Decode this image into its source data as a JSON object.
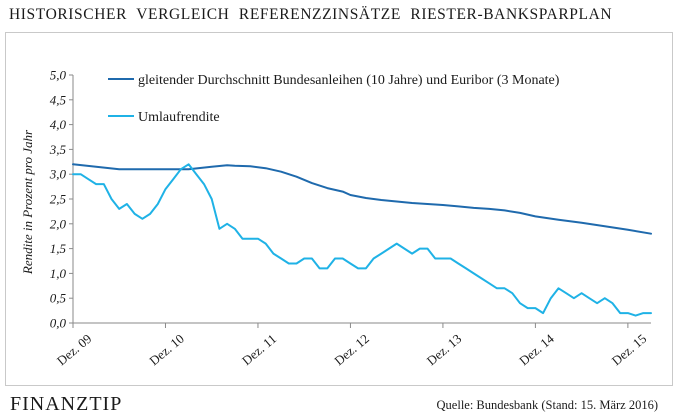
{
  "header": {
    "title": "HISTORISCHER VERGLEICH REFERENZZINSÄTZE RIESTER-BANKSPARPLAN"
  },
  "footer": {
    "logo_part1": "FINANZ",
    "logo_part2": "TIP",
    "source": "Quelle: Bundesbank (Stand: 15. März 2016)"
  },
  "chart_data": {
    "type": "line",
    "title": "",
    "xlabel": "",
    "ylabel": "Rendite in Prozent pro Jahr",
    "ylim": [
      0,
      5
    ],
    "yticks": [
      0,
      0.5,
      1,
      1.5,
      2,
      2.5,
      3,
      3.5,
      4,
      4.5,
      5
    ],
    "ytick_labels": [
      "0,0",
      "0,5",
      "1,0",
      "1,5",
      "2,0",
      "2,5",
      "3,0",
      "3,5",
      "4,0",
      "4,5",
      "5,0"
    ],
    "xlim": [
      0,
      75
    ],
    "xticks": [
      0,
      12,
      24,
      36,
      48,
      60,
      72
    ],
    "xtick_labels": [
      "Dez. 09",
      "Dez. 10",
      "Dez. 11",
      "Dez. 12",
      "Dez. 13",
      "Dez. 14",
      "Dez. 15"
    ],
    "grid": false,
    "legend": "top-left",
    "series": [
      {
        "name": "gleitender Durchschnitt Bundesanleihen (10 Jahre) und Euribor (3 Monate)",
        "color": "#1f6aad",
        "x": [
          0,
          3,
          6,
          9,
          12,
          15,
          18,
          20,
          21,
          23,
          25,
          27,
          29,
          31,
          33,
          35,
          36,
          38,
          40,
          42,
          44,
          46,
          48,
          50,
          52,
          54,
          56,
          58,
          60,
          63,
          66,
          69,
          72,
          75
        ],
        "y": [
          3.2,
          3.15,
          3.1,
          3.1,
          3.1,
          3.1,
          3.15,
          3.18,
          3.17,
          3.16,
          3.12,
          3.05,
          2.95,
          2.82,
          2.72,
          2.65,
          2.58,
          2.52,
          2.48,
          2.45,
          2.42,
          2.4,
          2.38,
          2.35,
          2.32,
          2.3,
          2.27,
          2.22,
          2.15,
          2.08,
          2.02,
          1.95,
          1.88,
          1.8
        ]
      },
      {
        "name": "Umlaufrendite",
        "color": "#1fb2e6",
        "x": [
          0,
          1,
          2,
          3,
          4,
          5,
          6,
          7,
          8,
          9,
          10,
          11,
          12,
          13,
          14,
          15,
          16,
          17,
          18,
          19,
          20,
          21,
          22,
          23,
          24,
          25,
          26,
          27,
          28,
          29,
          30,
          31,
          32,
          33,
          34,
          35,
          36,
          37,
          38,
          39,
          40,
          41,
          42,
          43,
          44,
          45,
          46,
          47,
          48,
          49,
          50,
          51,
          52,
          53,
          54,
          55,
          56,
          57,
          58,
          59,
          60,
          61,
          62,
          63,
          64,
          65,
          66,
          67,
          68,
          69,
          70,
          71,
          72,
          73,
          74,
          75
        ],
        "y": [
          3.0,
          3.0,
          2.9,
          2.8,
          2.8,
          2.5,
          2.3,
          2.4,
          2.2,
          2.1,
          2.2,
          2.4,
          2.7,
          2.9,
          3.1,
          3.2,
          3.0,
          2.8,
          2.5,
          1.9,
          2.0,
          1.9,
          1.7,
          1.7,
          1.7,
          1.6,
          1.4,
          1.3,
          1.2,
          1.2,
          1.3,
          1.3,
          1.1,
          1.1,
          1.3,
          1.3,
          1.2,
          1.1,
          1.1,
          1.3,
          1.4,
          1.5,
          1.6,
          1.5,
          1.4,
          1.5,
          1.5,
          1.3,
          1.3,
          1.3,
          1.2,
          1.1,
          1.0,
          0.9,
          0.8,
          0.7,
          0.7,
          0.6,
          0.4,
          0.3,
          0.3,
          0.2,
          0.5,
          0.7,
          0.6,
          0.5,
          0.6,
          0.5,
          0.4,
          0.5,
          0.4,
          0.2,
          0.2,
          0.15,
          0.2,
          0.2
        ]
      }
    ]
  }
}
